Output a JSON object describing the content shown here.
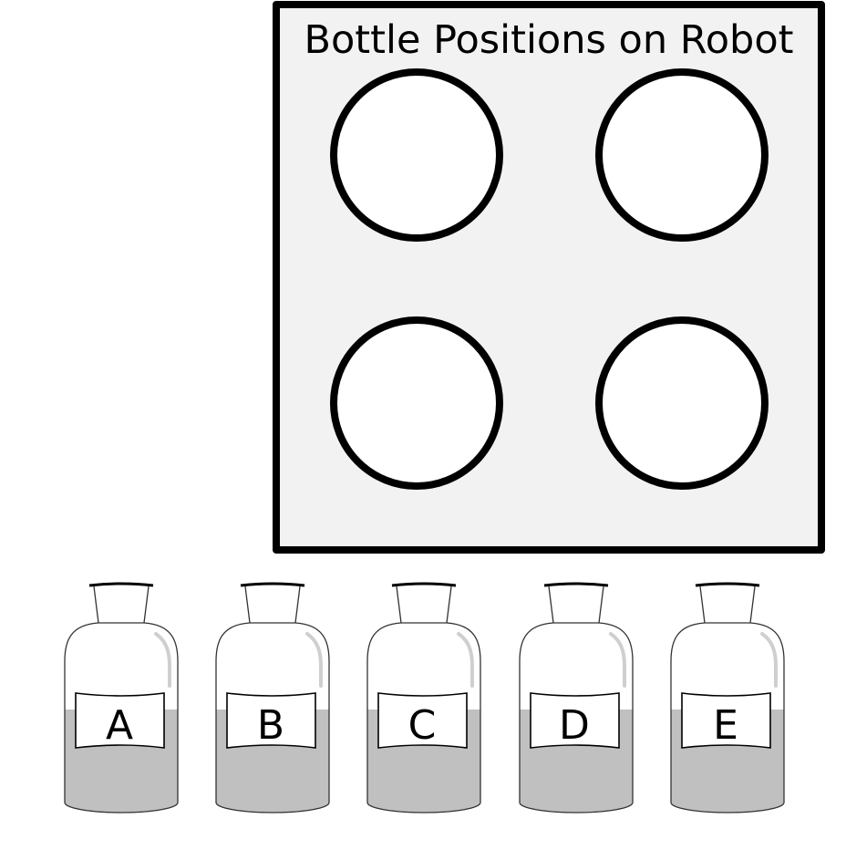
{
  "board": {
    "title": "Bottle Positions on Robot",
    "slot_count": 4,
    "fill_color": "#f2f2f2",
    "border_color": "#000000"
  },
  "bottles": [
    {
      "label": "A"
    },
    {
      "label": "B"
    },
    {
      "label": "C"
    },
    {
      "label": "D"
    },
    {
      "label": "E"
    }
  ],
  "colors": {
    "liquid": "#c0c0c0",
    "glass_outline": "#333333",
    "highlight": "#cfcfcf"
  }
}
